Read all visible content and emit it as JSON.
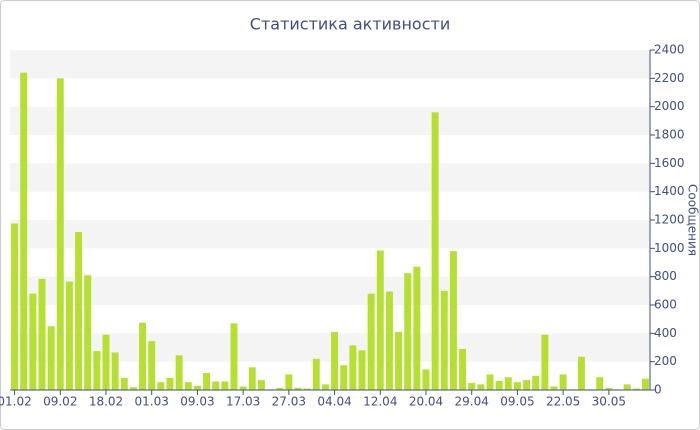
{
  "chart_data": {
    "type": "bar",
    "title": "Статистика активности",
    "y_label": "Сообщения",
    "categories": [
      "01.02",
      null,
      null,
      null,
      null,
      "09.02",
      null,
      null,
      null,
      null,
      "18.02",
      null,
      null,
      null,
      null,
      "01.03",
      null,
      null,
      null,
      null,
      "09.03",
      null,
      null,
      null,
      null,
      "17.03",
      null,
      null,
      null,
      null,
      "27.03",
      null,
      null,
      null,
      null,
      "04.04",
      null,
      null,
      null,
      null,
      "12.04",
      null,
      null,
      null,
      null,
      "20.04",
      null,
      null,
      null,
      null,
      "29.04",
      null,
      null,
      null,
      null,
      "09.05",
      null,
      null,
      null,
      null,
      "22.05",
      null,
      null,
      null,
      null,
      "30.05",
      null,
      null,
      null,
      null
    ],
    "values": [
      1175,
      2240,
      680,
      785,
      450,
      2200,
      765,
      1115,
      810,
      275,
      390,
      265,
      85,
      20,
      475,
      345,
      55,
      85,
      245,
      55,
      30,
      120,
      60,
      60,
      470,
      25,
      160,
      70,
      5,
      15,
      110,
      15,
      10,
      220,
      40,
      410,
      175,
      315,
      280,
      680,
      985,
      695,
      410,
      825,
      870,
      145,
      1960,
      700,
      980,
      290,
      50,
      40,
      110,
      65,
      90,
      55,
      70,
      100,
      390,
      25,
      110,
      5,
      235,
      5,
      90,
      15,
      5,
      40,
      10,
      80
    ],
    "color": "#b5e032",
    "ylim": [
      0,
      2400
    ],
    "yticks": [
      0,
      200,
      400,
      600,
      800,
      1000,
      1200,
      1400,
      1600,
      1800,
      2000,
      2200,
      2400
    ],
    "grid": true
  }
}
